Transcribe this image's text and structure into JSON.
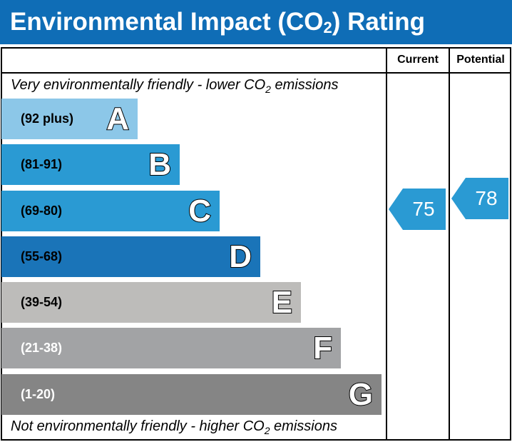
{
  "title_pre": "Environmental Impact (CO",
  "title_sub": "2",
  "title_post": ") Rating",
  "columns": {
    "current": "Current",
    "potential": "Potential"
  },
  "top_note": {
    "pre": "Very environmentally friendly - lower CO",
    "sub": "2",
    "post": " emissions"
  },
  "bottom_note": {
    "pre": "Not environmentally friendly - higher CO",
    "sub": "2",
    "post": " emissions"
  },
  "chart_data": {
    "type": "bar",
    "bands": [
      {
        "letter": "A",
        "range": "(92 plus)",
        "color": "#8cc7e8",
        "text_color": "#000000"
      },
      {
        "letter": "B",
        "range": "(81-91)",
        "color": "#2a9ad3",
        "text_color": "#000000"
      },
      {
        "letter": "C",
        "range": "(69-80)",
        "color": "#2a9ad3",
        "text_color": "#000000"
      },
      {
        "letter": "D",
        "range": "(55-68)",
        "color": "#1a74b8",
        "text_color": "#000000"
      },
      {
        "letter": "E",
        "range": "(39-54)",
        "color": "#bdbcba",
        "text_color": "#000000"
      },
      {
        "letter": "F",
        "range": "(21-38)",
        "color": "#a2a3a5",
        "text_color": "#ffffff"
      },
      {
        "letter": "G",
        "range": "(1-20)",
        "color": "#858585",
        "text_color": "#ffffff"
      }
    ],
    "current": 75,
    "potential": 78,
    "arrow_color": "#2a9ad3"
  }
}
